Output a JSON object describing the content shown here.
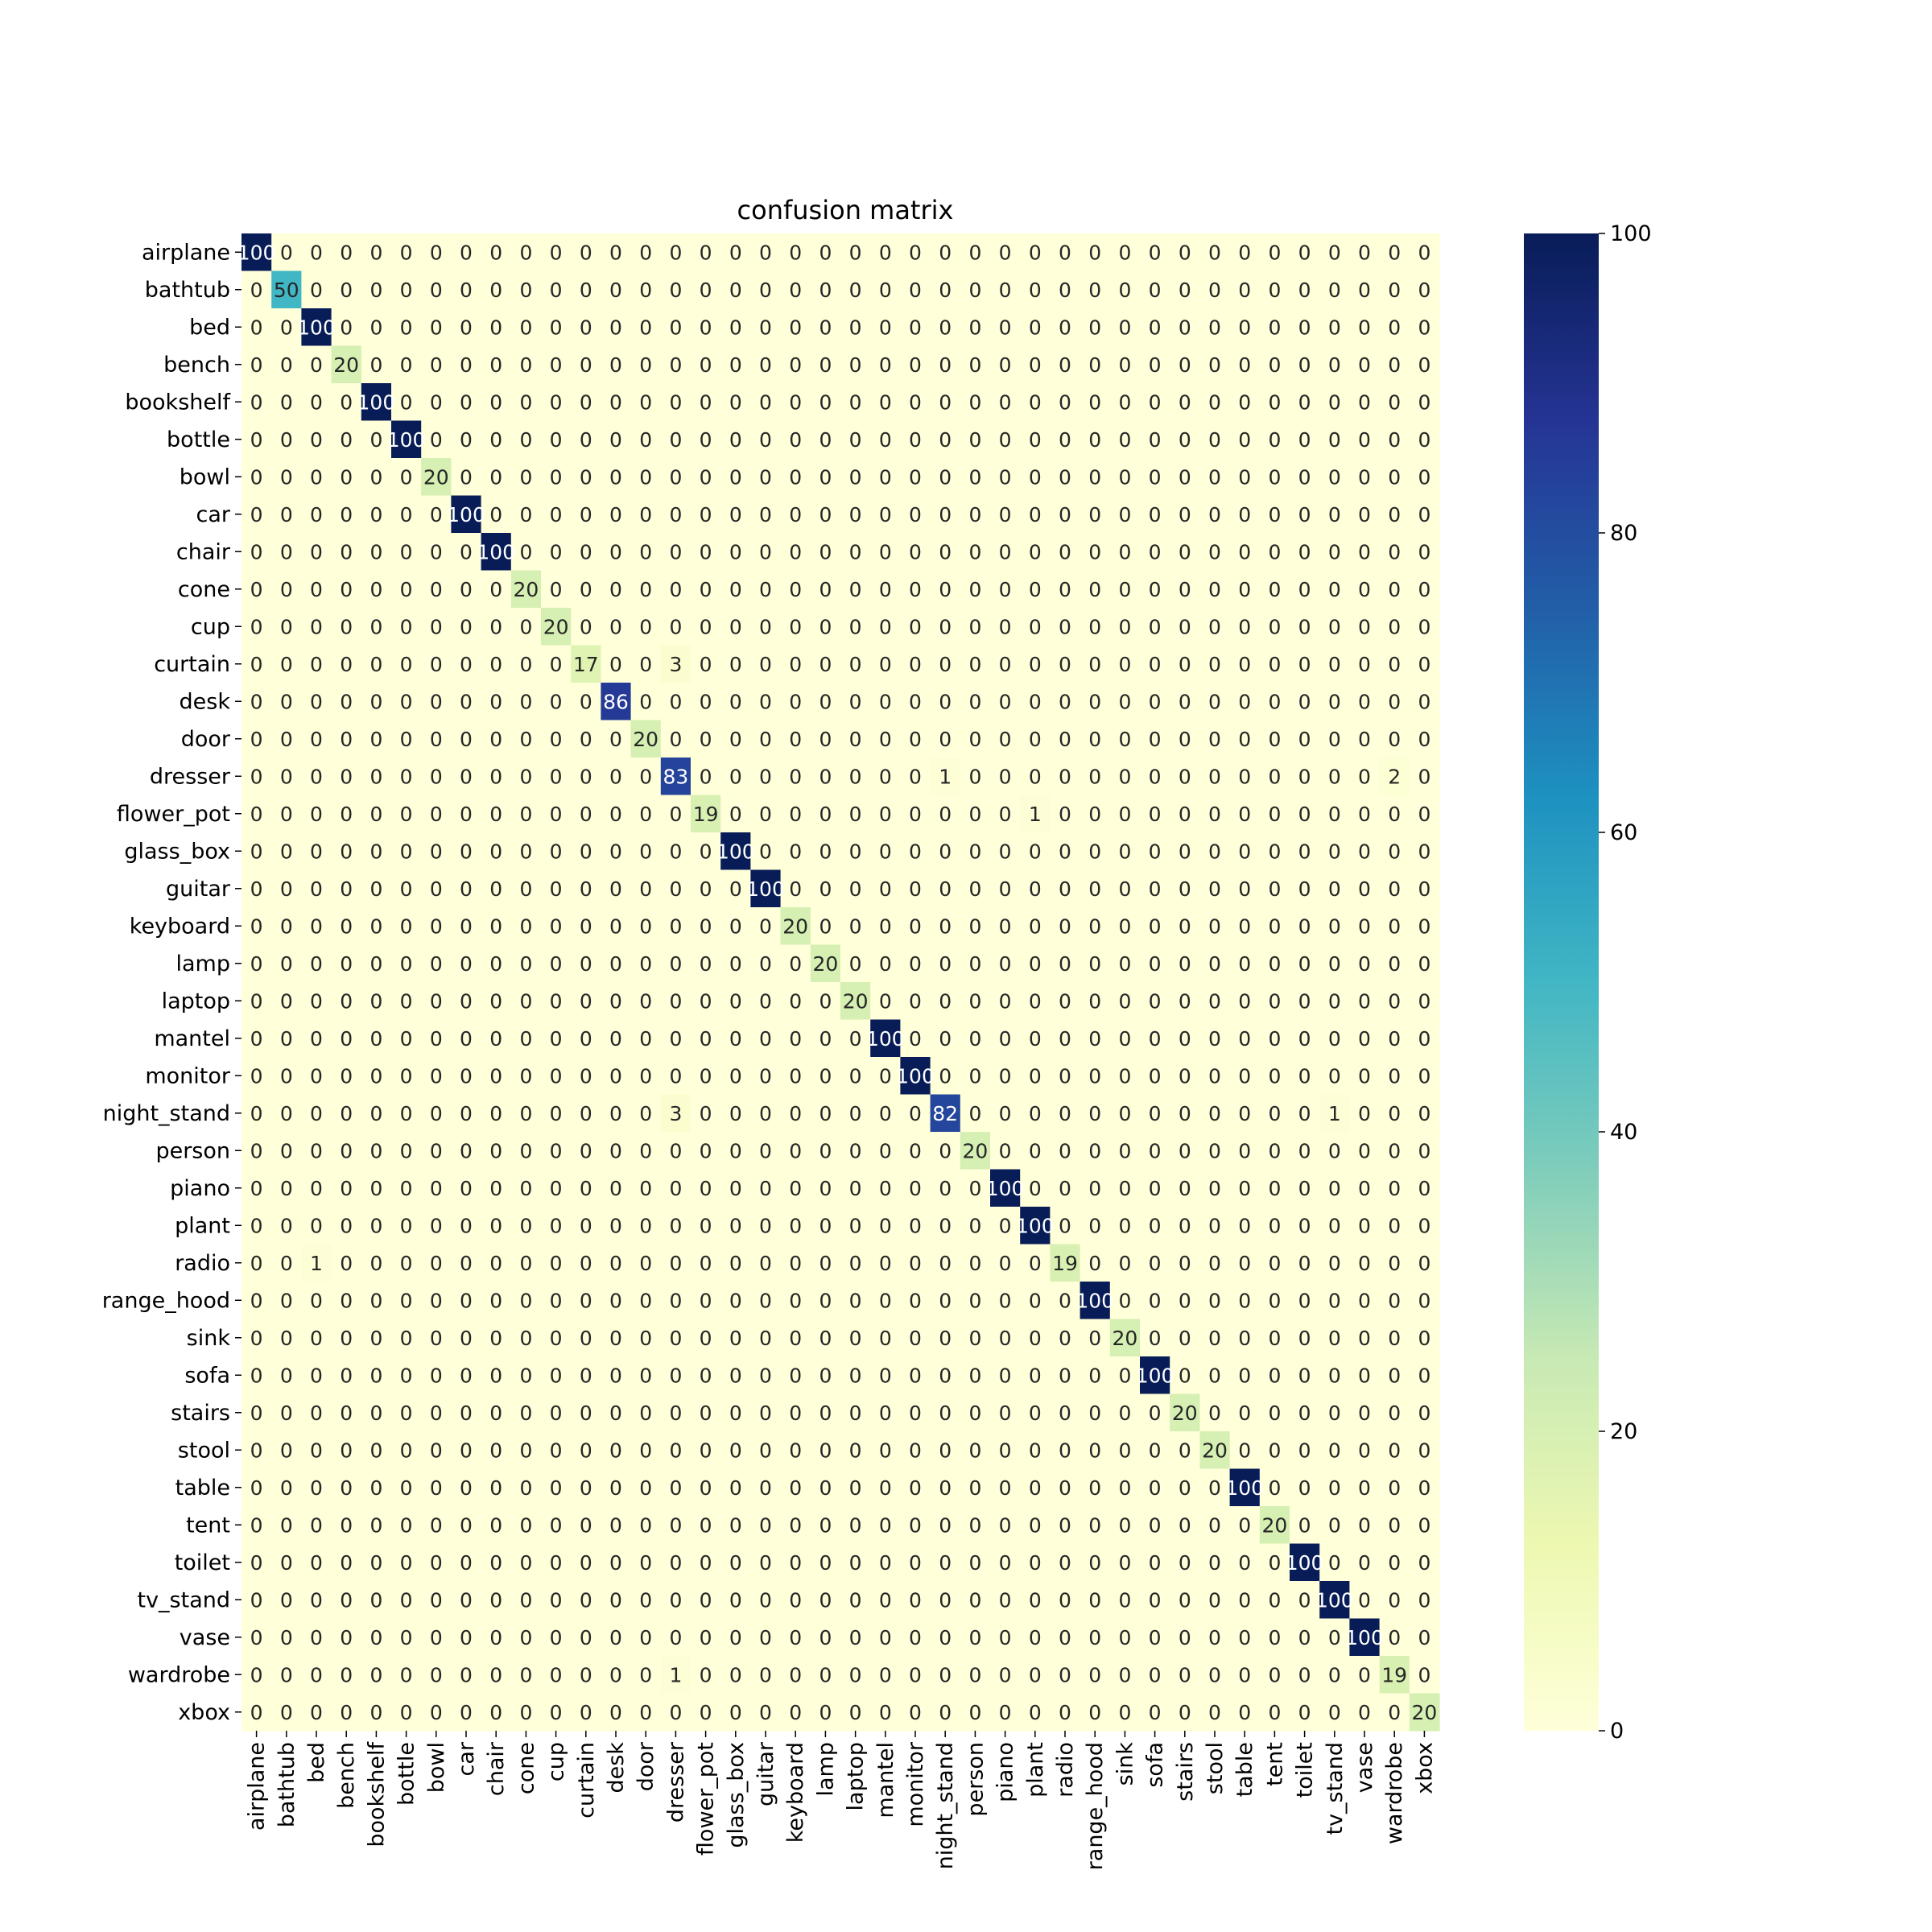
{
  "chart_data": {
    "type": "heatmap",
    "title": "confusion matrix",
    "xlabel": "",
    "ylabel": "",
    "labels": [
      "airplane",
      "bathtub",
      "bed",
      "bench",
      "bookshelf",
      "bottle",
      "bowl",
      "car",
      "chair",
      "cone",
      "cup",
      "curtain",
      "desk",
      "door",
      "dresser",
      "flower_pot",
      "glass_box",
      "guitar",
      "keyboard",
      "lamp",
      "laptop",
      "mantel",
      "monitor",
      "night_stand",
      "person",
      "piano",
      "plant",
      "radio",
      "range_hood",
      "sink",
      "sofa",
      "stairs",
      "stool",
      "table",
      "tent",
      "toilet",
      "tv_stand",
      "vase",
      "wardrobe",
      "xbox"
    ],
    "diagonal": [
      100,
      50,
      100,
      20,
      100,
      100,
      20,
      100,
      100,
      20,
      20,
      17,
      86,
      20,
      83,
      19,
      100,
      100,
      20,
      20,
      20,
      100,
      100,
      82,
      20,
      100,
      100,
      19,
      100,
      20,
      100,
      20,
      20,
      100,
      20,
      100,
      100,
      100,
      19,
      20
    ],
    "off_diagonal": [
      {
        "actual": "curtain",
        "predicted": "dresser",
        "value": 3
      },
      {
        "actual": "dresser",
        "predicted": "night_stand",
        "value": 1
      },
      {
        "actual": "dresser",
        "predicted": "wardrobe",
        "value": 2
      },
      {
        "actual": "flower_pot",
        "predicted": "plant",
        "value": 1
      },
      {
        "actual": "night_stand",
        "predicted": "dresser",
        "value": 3
      },
      {
        "actual": "night_stand",
        "predicted": "tv_stand",
        "value": 1
      },
      {
        "actual": "radio",
        "predicted": "bed",
        "value": 1
      },
      {
        "actual": "wardrobe",
        "predicted": "dresser",
        "value": 1
      }
    ],
    "colorbar": {
      "min": 0,
      "max": 100,
      "ticks": [
        0,
        20,
        40,
        60,
        80,
        100
      ],
      "colormap": "YlGnBu"
    }
  }
}
